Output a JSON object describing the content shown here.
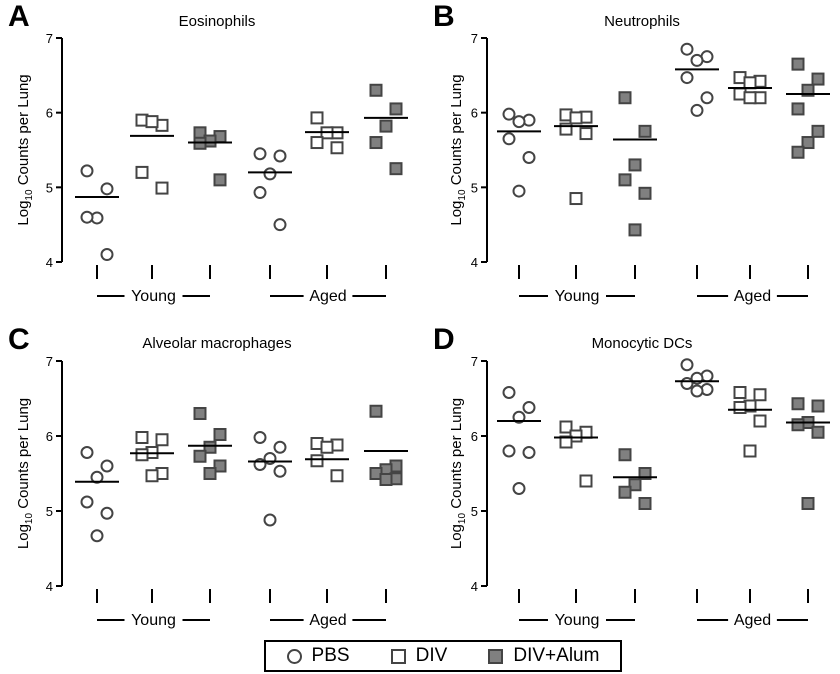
{
  "chart_data": [
    {
      "panel": "A",
      "type": "scatter",
      "title": "Eosinophils",
      "ylabel_prefix": "Log",
      "ylabel_sub": "10",
      "ylabel_suffix": " Counts per Lung",
      "ylim": [
        4,
        7
      ],
      "yticks": [
        "4",
        "5",
        "6",
        "7"
      ],
      "groups": [
        "Young",
        "Aged"
      ],
      "series": [
        {
          "name": "PBS",
          "group": "Young",
          "values": [
            5.22,
            4.98,
            4.59,
            4.6,
            4.1
          ],
          "mean": 4.87
        },
        {
          "name": "DIV",
          "group": "Young",
          "values": [
            5.9,
            5.83,
            5.88,
            5.2,
            4.99
          ],
          "mean": 5.69
        },
        {
          "name": "DIV+Alum",
          "group": "Young",
          "values": [
            5.73,
            5.68,
            5.62,
            5.59,
            5.1
          ],
          "mean": 5.6
        },
        {
          "name": "PBS",
          "group": "Aged",
          "values": [
            5.45,
            5.42,
            5.18,
            4.93,
            4.5
          ],
          "mean": 5.2
        },
        {
          "name": "DIV",
          "group": "Aged",
          "values": [
            5.93,
            5.73,
            5.73,
            5.6,
            5.53
          ],
          "mean": 5.74
        },
        {
          "name": "DIV+Alum",
          "group": "Aged",
          "values": [
            6.3,
            6.05,
            5.82,
            5.6,
            5.25
          ],
          "mean": 5.93
        }
      ]
    },
    {
      "panel": "B",
      "type": "scatter",
      "title": "Neutrophils",
      "ylabel_prefix": "Log",
      "ylabel_sub": "10",
      "ylabel_suffix": " Counts per Lung",
      "ylim": [
        4,
        7
      ],
      "yticks": [
        "4",
        "5",
        "6",
        "7"
      ],
      "groups": [
        "Young",
        "Aged"
      ],
      "series": [
        {
          "name": "PBS",
          "group": "Young",
          "values": [
            5.98,
            5.9,
            5.88,
            5.65,
            5.4,
            4.95
          ],
          "mean": 5.75
        },
        {
          "name": "DIV",
          "group": "Young",
          "values": [
            5.97,
            5.94,
            5.93,
            5.78,
            5.72,
            4.85
          ],
          "mean": 5.82
        },
        {
          "name": "DIV+Alum",
          "group": "Young",
          "values": [
            6.2,
            5.75,
            5.3,
            5.1,
            4.92,
            4.43
          ],
          "mean": 5.64
        },
        {
          "name": "PBS",
          "group": "Aged",
          "values": [
            6.85,
            6.75,
            6.7,
            6.47,
            6.2,
            6.03
          ],
          "mean": 6.58
        },
        {
          "name": "DIV",
          "group": "Aged",
          "values": [
            6.47,
            6.42,
            6.4,
            6.25,
            6.2,
            6.2
          ],
          "mean": 6.33
        },
        {
          "name": "DIV+Alum",
          "group": "Aged",
          "values": [
            6.65,
            6.45,
            6.3,
            6.05,
            5.75,
            5.6,
            5.47
          ],
          "mean": 6.25
        }
      ]
    },
    {
      "panel": "C",
      "type": "scatter",
      "title": "Alveolar macrophages",
      "ylabel_prefix": "Log",
      "ylabel_sub": "10",
      "ylabel_suffix": " Counts per Lung",
      "ylim": [
        4,
        7
      ],
      "yticks": [
        "4",
        "5",
        "6",
        "7"
      ],
      "groups": [
        "Young",
        "Aged"
      ],
      "series": [
        {
          "name": "PBS",
          "group": "Young",
          "values": [
            5.78,
            5.6,
            5.45,
            5.12,
            4.97,
            4.67
          ],
          "mean": 5.39
        },
        {
          "name": "DIV",
          "group": "Young",
          "values": [
            5.98,
            5.95,
            5.78,
            5.75,
            5.5,
            5.47
          ],
          "mean": 5.77
        },
        {
          "name": "DIV+Alum",
          "group": "Young",
          "values": [
            6.3,
            6.02,
            5.85,
            5.73,
            5.6,
            5.5
          ],
          "mean": 5.87
        },
        {
          "name": "PBS",
          "group": "Aged",
          "values": [
            5.98,
            5.85,
            5.7,
            5.62,
            5.53,
            4.88
          ],
          "mean": 5.66
        },
        {
          "name": "DIV",
          "group": "Aged",
          "values": [
            5.9,
            5.88,
            5.85,
            5.67,
            5.47
          ],
          "mean": 5.69
        },
        {
          "name": "DIV+Alum",
          "group": "Aged",
          "values": [
            6.33,
            5.6,
            5.55,
            5.5,
            5.43,
            5.42
          ],
          "mean": 5.8
        }
      ]
    },
    {
      "panel": "D",
      "type": "scatter",
      "title": "Monocytic DCs",
      "ylabel_prefix": "Log",
      "ylabel_sub": "10",
      "ylabel_suffix": " Counts per Lung",
      "ylim": [
        4,
        7
      ],
      "yticks": [
        "4",
        "5",
        "6",
        "7"
      ],
      "groups": [
        "Young",
        "Aged"
      ],
      "series": [
        {
          "name": "PBS",
          "group": "Young",
          "values": [
            6.58,
            6.38,
            6.25,
            5.8,
            5.78,
            5.3
          ],
          "mean": 6.2
        },
        {
          "name": "DIV",
          "group": "Young",
          "values": [
            6.12,
            6.05,
            6.0,
            5.92,
            5.4
          ],
          "mean": 5.98
        },
        {
          "name": "DIV+Alum",
          "group": "Young",
          "values": [
            5.75,
            5.5,
            5.35,
            5.25,
            5.1
          ],
          "mean": 5.45
        },
        {
          "name": "PBS",
          "group": "Aged",
          "values": [
            6.95,
            6.8,
            6.77,
            6.7,
            6.62,
            6.6
          ],
          "mean": 6.73
        },
        {
          "name": "DIV",
          "group": "Aged",
          "values": [
            6.58,
            6.55,
            6.4,
            6.38,
            6.2,
            5.8
          ],
          "mean": 6.35
        },
        {
          "name": "DIV+Alum",
          "group": "Aged",
          "values": [
            6.43,
            6.4,
            6.18,
            6.15,
            6.05,
            5.1
          ],
          "mean": 6.18
        }
      ]
    }
  ],
  "legend": {
    "items": [
      {
        "label": "PBS",
        "icon": "open-circle"
      },
      {
        "label": "DIV",
        "icon": "open-square"
      },
      {
        "label": "DIV+Alum",
        "icon": "filled-square"
      }
    ]
  },
  "colors": {
    "filled_marker": "#808080",
    "marker_stroke": "#444444",
    "axis": "#000000"
  }
}
